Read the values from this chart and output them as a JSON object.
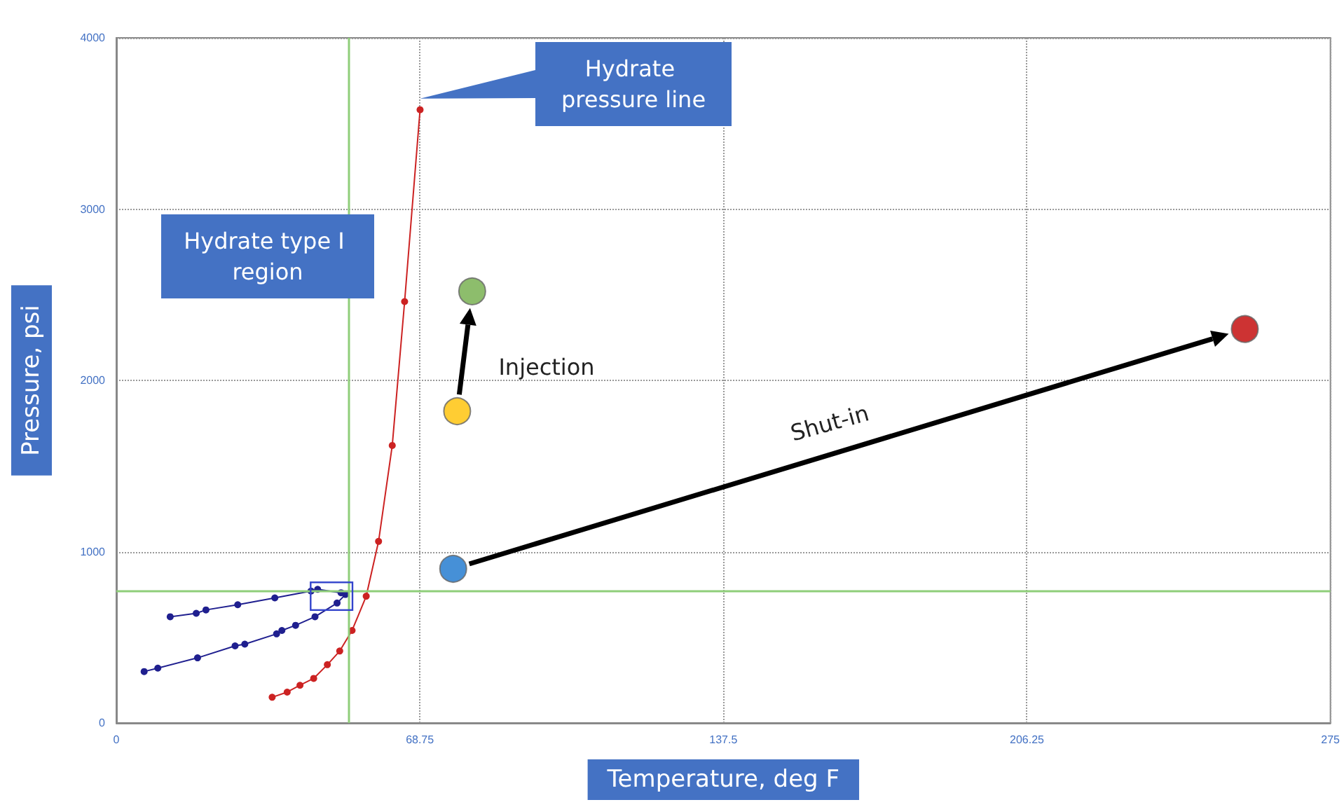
{
  "chart_data": {
    "type": "line",
    "xlabel": "Temperature, deg F",
    "ylabel": "Pressure, psi",
    "xlim": [
      0,
      275
    ],
    "xticks": [
      0,
      68.75,
      137.5,
      206.25,
      275
    ],
    "ylim": [
      0,
      4000
    ],
    "yticks": [
      0,
      1000,
      2000,
      3000,
      4000
    ],
    "grid": true,
    "marker": "circle",
    "line_style": "solid",
    "series": [
      {
        "color": "#cc2222",
        "x": [
          35.3,
          38.7,
          41.6,
          44.7,
          47.8,
          50.6,
          53.4,
          56.6,
          59.4,
          62.5,
          65.3,
          68.8
        ],
        "values": [
          150,
          180,
          220,
          260,
          340,
          420,
          540,
          740,
          1060,
          1620,
          2460,
          3580
        ]
      },
      {
        "color": "#1f1f8f",
        "x": [
          12.2,
          18.1,
          20.3,
          27.5,
          35.9,
          44.1,
          45.6,
          50.9
        ],
        "values": [
          620,
          640,
          660,
          690,
          730,
          770,
          780,
          760
        ]
      },
      {
        "color": "#1f1f8f",
        "x": [
          6.3,
          9.4,
          18.4,
          26.9,
          29.1,
          36.3,
          37.5,
          40.6,
          45,
          50,
          51.9
        ],
        "values": [
          300,
          320,
          380,
          450,
          460,
          520,
          540,
          570,
          620,
          700,
          750
        ]
      },
      {
        "type": "scatter",
        "x": [
          76.3,
          77.2,
          80.6,
          255.6
        ],
        "values": [
          900,
          1820,
          2520,
          2300
        ],
        "colors": [
          "#1874cd",
          "#ffc000",
          "#70ad47",
          "#c00000"
        ]
      }
    ],
    "ref_lines": [
      {
        "axis": "x",
        "value": 52.5,
        "color": "#8fce7a"
      },
      {
        "axis": "y",
        "value": 770,
        "color": "#8fce7a"
      }
    ],
    "annotations": [
      "Hydrate pressure line",
      "Hydrate type I region",
      "Injection",
      "Shut-in"
    ]
  }
}
